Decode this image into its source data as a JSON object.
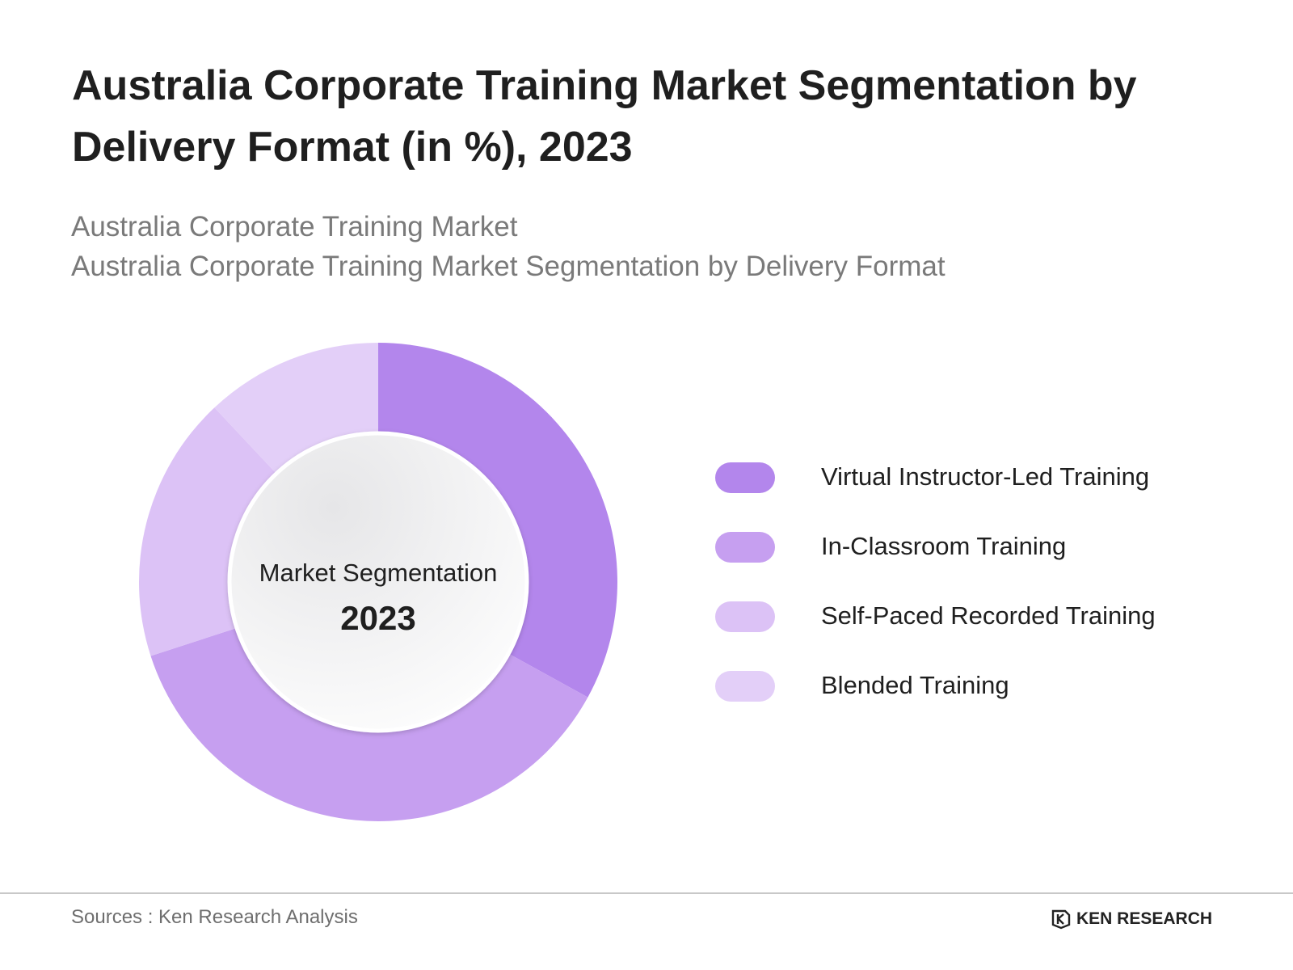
{
  "header": {
    "title": "Australia Corporate Training Market Segmentation by Delivery Format  (in %), 2023",
    "subtitle_1": "Australia Corporate Training Market",
    "subtitle_2": "Australia Corporate Training Market Segmentation by Delivery Format"
  },
  "chart_data": {
    "type": "pie",
    "variant": "donut",
    "title": "Australia Corporate Training Market Segmentation by Delivery Format  (in %), 2023",
    "center_label": "Market Segmentation",
    "center_year": "2023",
    "categories": [
      "Virtual Instructor-Led Training",
      "In-Classroom Training",
      "Self-Paced Recorded Training",
      "Blended Training"
    ],
    "values": [
      33,
      37,
      18,
      12
    ],
    "colors": [
      "#b386ec",
      "#c69ff0",
      "#dcc2f6",
      "#e3cff8"
    ],
    "legend_position": "right"
  },
  "legend": {
    "items": [
      {
        "label": "Virtual Instructor-Led Training",
        "color": "#b386ec"
      },
      {
        "label": "In-Classroom Training",
        "color": "#c69ff0"
      },
      {
        "label": "Self-Paced Recorded Training",
        "color": "#dcc2f6"
      },
      {
        "label": "Blended Training",
        "color": "#e3cff8"
      }
    ]
  },
  "footer": {
    "source": "Sources : Ken Research Analysis",
    "brand": "KEN RESEARCH",
    "brand_icon": "ken-research-logo-icon"
  }
}
